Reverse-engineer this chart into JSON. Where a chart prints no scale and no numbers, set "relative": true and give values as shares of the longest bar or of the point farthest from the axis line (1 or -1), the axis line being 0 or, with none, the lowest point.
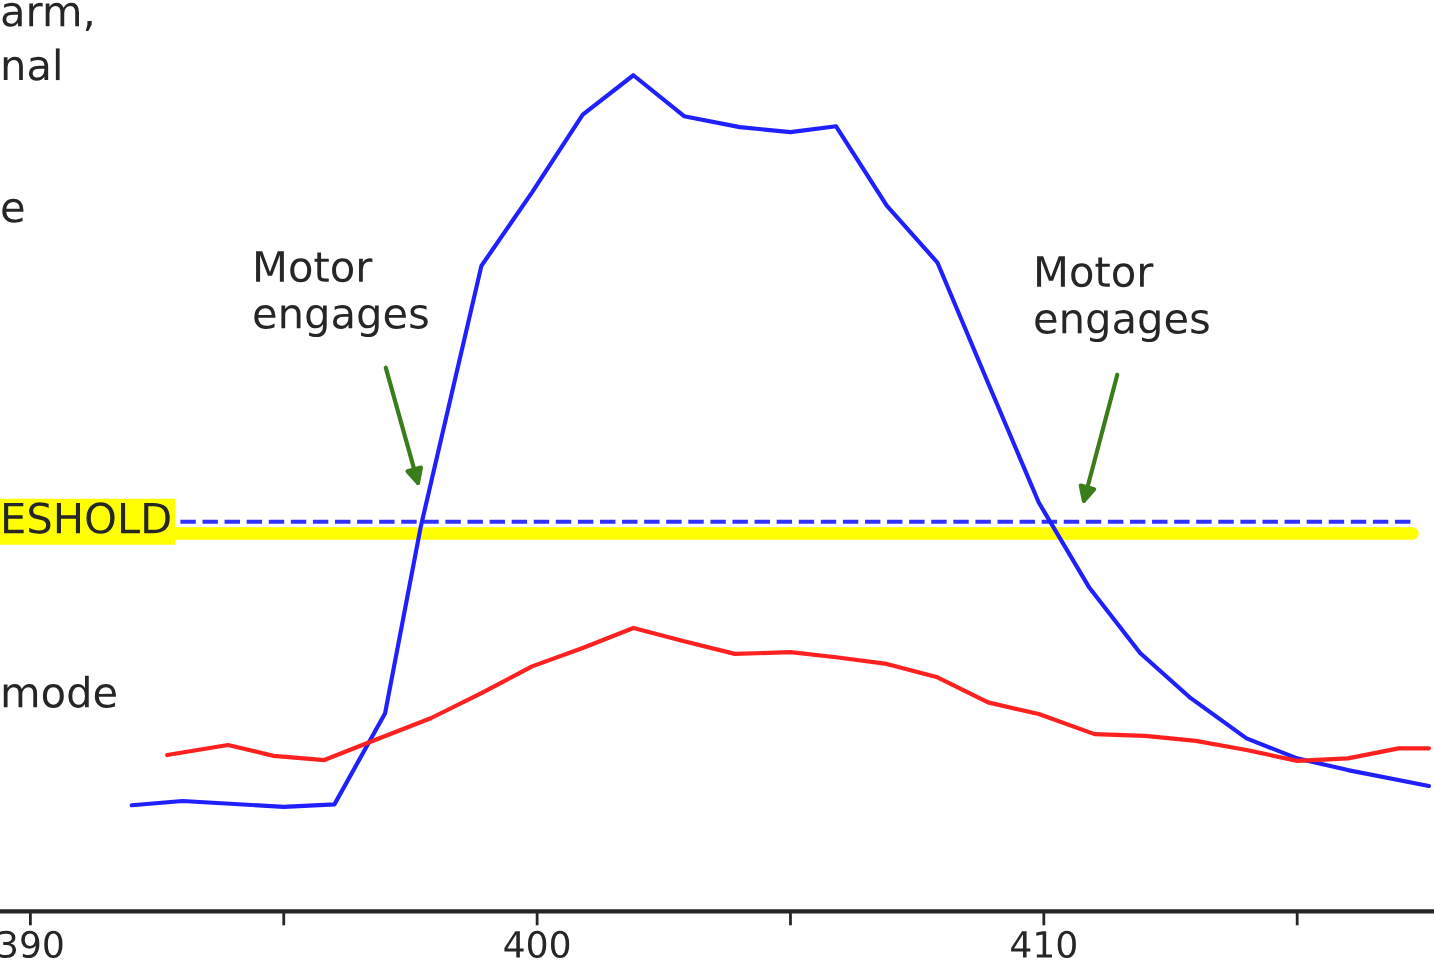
{
  "chart_data": {
    "type": "line",
    "relative": true,
    "x": [
      392,
      393,
      395,
      396,
      397,
      397.7,
      398.9,
      399.9,
      400.9,
      401.9,
      402.9,
      404,
      405,
      405.9,
      406.9,
      407.9,
      408.9,
      409.9,
      410.9,
      411.9,
      412.9,
      414,
      415,
      416,
      417.6
    ],
    "series": [
      {
        "color": "#2020ff",
        "values": [
          0.127,
          0.132,
          0.125,
          0.128,
          0.237,
          0.459,
          0.772,
          0.86,
          0.953,
          1.0,
          0.951,
          0.938,
          0.932,
          0.939,
          0.844,
          0.776,
          0.632,
          0.489,
          0.387,
          0.309,
          0.255,
          0.207,
          0.183,
          0.169,
          0.15
        ]
      },
      {
        "color": "#ff2020",
        "x": [
          392.7,
          393.9,
          394.8,
          395.8,
          396.8,
          397.9,
          398.9,
          399.9,
          400.9,
          401.9,
          402.9,
          403.9,
          405,
          405.9,
          406.9,
          407.9,
          408.9,
          409.9,
          411,
          412,
          413,
          414,
          415,
          416,
          417,
          417.6
        ],
        "values": [
          0.187,
          0.199,
          0.186,
          0.181,
          0.205,
          0.231,
          0.261,
          0.293,
          0.315,
          0.339,
          0.323,
          0.308,
          0.31,
          0.304,
          0.296,
          0.28,
          0.25,
          0.236,
          0.212,
          0.21,
          0.204,
          0.193,
          0.18,
          0.183,
          0.195,
          0.195
        ]
      }
    ],
    "xlim": [
      389.4,
      417.7
    ],
    "xticks": [
      390,
      {
        "value": 395,
        "label": null
      },
      400,
      {
        "value": 405,
        "label": null
      },
      410,
      {
        "value": 415,
        "label": null
      }
    ],
    "ref_lines": [
      {
        "axis": "y",
        "value": 0.466,
        "label": "ESHOLD",
        "color": "#3333ff",
        "line_style": "dashed"
      },
      {
        "axis": "y",
        "value": 0.452,
        "color": "#ffff00",
        "line_style": "solid"
      }
    ],
    "annotations": [
      "Motor\nengages",
      "Motor\nengages",
      "arm,",
      "nal",
      "e",
      "mode"
    ],
    "tick_labels": "x"
  }
}
